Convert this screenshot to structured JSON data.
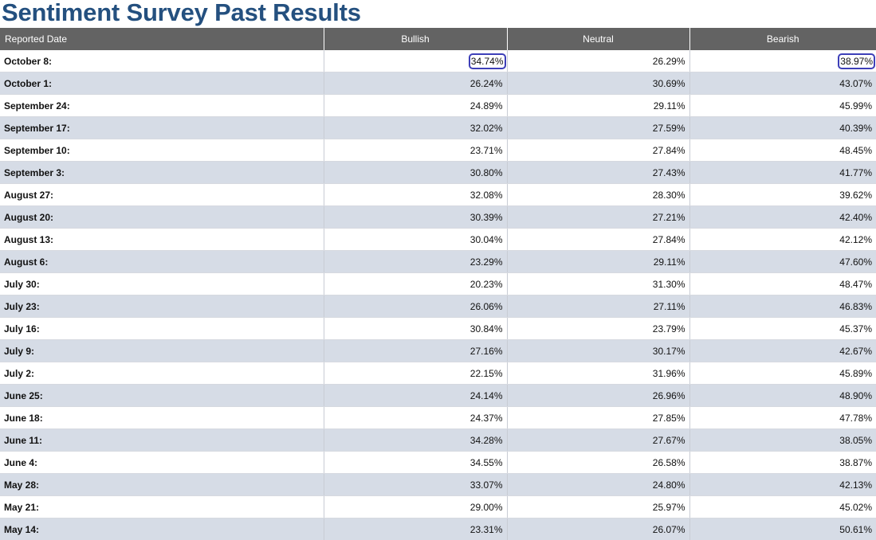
{
  "page_title": "Sentiment Survey Past Results",
  "table": {
    "headers": {
      "date": "Reported Date",
      "bullish": "Bullish",
      "neutral": "Neutral",
      "bearish": "Bearish"
    },
    "rows": [
      {
        "date": "October 8:",
        "bullish": "34.74%",
        "neutral": "26.29%",
        "bearish": "38.97%"
      },
      {
        "date": "October 1:",
        "bullish": "26.24%",
        "neutral": "30.69%",
        "bearish": "43.07%"
      },
      {
        "date": "September 24:",
        "bullish": "24.89%",
        "neutral": "29.11%",
        "bearish": "45.99%"
      },
      {
        "date": "September 17:",
        "bullish": "32.02%",
        "neutral": "27.59%",
        "bearish": "40.39%"
      },
      {
        "date": "September 10:",
        "bullish": "23.71%",
        "neutral": "27.84%",
        "bearish": "48.45%"
      },
      {
        "date": "September 3:",
        "bullish": "30.80%",
        "neutral": "27.43%",
        "bearish": "41.77%"
      },
      {
        "date": "August 27:",
        "bullish": "32.08%",
        "neutral": "28.30%",
        "bearish": "39.62%"
      },
      {
        "date": "August 20:",
        "bullish": "30.39%",
        "neutral": "27.21%",
        "bearish": "42.40%"
      },
      {
        "date": "August 13:",
        "bullish": "30.04%",
        "neutral": "27.84%",
        "bearish": "42.12%"
      },
      {
        "date": "August 6:",
        "bullish": "23.29%",
        "neutral": "29.11%",
        "bearish": "47.60%"
      },
      {
        "date": "July 30:",
        "bullish": "20.23%",
        "neutral": "31.30%",
        "bearish": "48.47%"
      },
      {
        "date": "July 23:",
        "bullish": "26.06%",
        "neutral": "27.11%",
        "bearish": "46.83%"
      },
      {
        "date": "July 16:",
        "bullish": "30.84%",
        "neutral": "23.79%",
        "bearish": "45.37%"
      },
      {
        "date": "July 9:",
        "bullish": "27.16%",
        "neutral": "30.17%",
        "bearish": "42.67%"
      },
      {
        "date": "July 2:",
        "bullish": "22.15%",
        "neutral": "31.96%",
        "bearish": "45.89%"
      },
      {
        "date": "June 25:",
        "bullish": "24.14%",
        "neutral": "26.96%",
        "bearish": "48.90%"
      },
      {
        "date": "June 18:",
        "bullish": "24.37%",
        "neutral": "27.85%",
        "bearish": "47.78%"
      },
      {
        "date": "June 11:",
        "bullish": "34.28%",
        "neutral": "27.67%",
        "bearish": "38.05%"
      },
      {
        "date": "June 4:",
        "bullish": "34.55%",
        "neutral": "26.58%",
        "bearish": "38.87%"
      },
      {
        "date": "May 28:",
        "bullish": "33.07%",
        "neutral": "24.80%",
        "bearish": "42.13%"
      },
      {
        "date": "May 21:",
        "bullish": "29.00%",
        "neutral": "25.97%",
        "bearish": "45.02%"
      },
      {
        "date": "May 14:",
        "bullish": "23.31%",
        "neutral": "26.07%",
        "bearish": "50.61%"
      }
    ],
    "highlighted_cells": [
      {
        "row": 0,
        "column": "bullish"
      },
      {
        "row": 0,
        "column": "bearish"
      }
    ]
  },
  "colors": {
    "title": "#24507f",
    "header_bg": "#636363",
    "stripe_bg": "#d6dce6",
    "highlight_border": "#3d3fb8"
  }
}
